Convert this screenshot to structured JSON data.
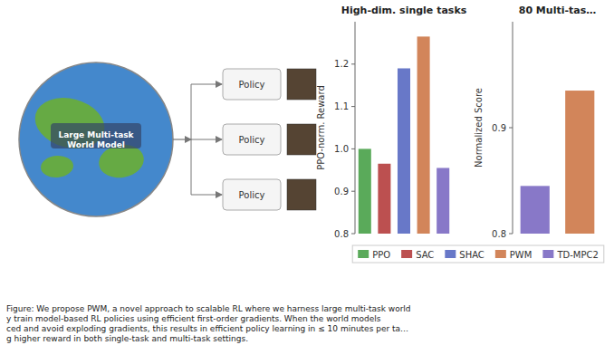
{
  "chart_data": [
    {
      "type": "bar",
      "title": "High-dim. single tasks",
      "ylabel": "PPO-norm. Reward",
      "categories": [
        "PPO",
        "SAC",
        "SHAC",
        "PWM",
        "TD-MPC2"
      ],
      "values": [
        1.0,
        0.965,
        1.19,
        1.265,
        0.955
      ],
      "colors": [
        "#5aaa5a",
        "#bc5050",
        "#6878c8",
        "#d2855a",
        "#8878c8"
      ],
      "ylim": [
        0.8,
        1.3
      ],
      "yticks": [
        0.8,
        0.9,
        {
          "value": 1.0,
          "label": "1.0"
        },
        1.1,
        1.2
      ],
      "grid": false,
      "legend": "bottom",
      "tick_labels": "y",
      "annotations": [
        "Large Multi-task\nWorld Model",
        "Policy",
        "Policy",
        "Policy",
        "Figure: We propose PWM, a novel approach to scalable RL where we harness large multi-task world\ny train model-based RL policies using efficient first-order gradients. When the world models\nced and avoid exploding gradients, this results in efficient policy learning in ≤ 10 minutes per ta…\ng higher reward in both single-task and multi-task settings."
      ]
    },
    {
      "type": "bar",
      "title": "80 Multi-tas…",
      "ylabel": "Normalized Score",
      "categories": [
        "TD-MPC2",
        "PWM"
      ],
      "values": [
        0.845,
        0.935
      ],
      "colors": [
        "#8878c8",
        "#d2855a"
      ],
      "ylim": [
        0.8,
        1.0
      ],
      "yticks": [
        0.8,
        0.9
      ],
      "grid": false,
      "tick_labels": "y"
    }
  ]
}
